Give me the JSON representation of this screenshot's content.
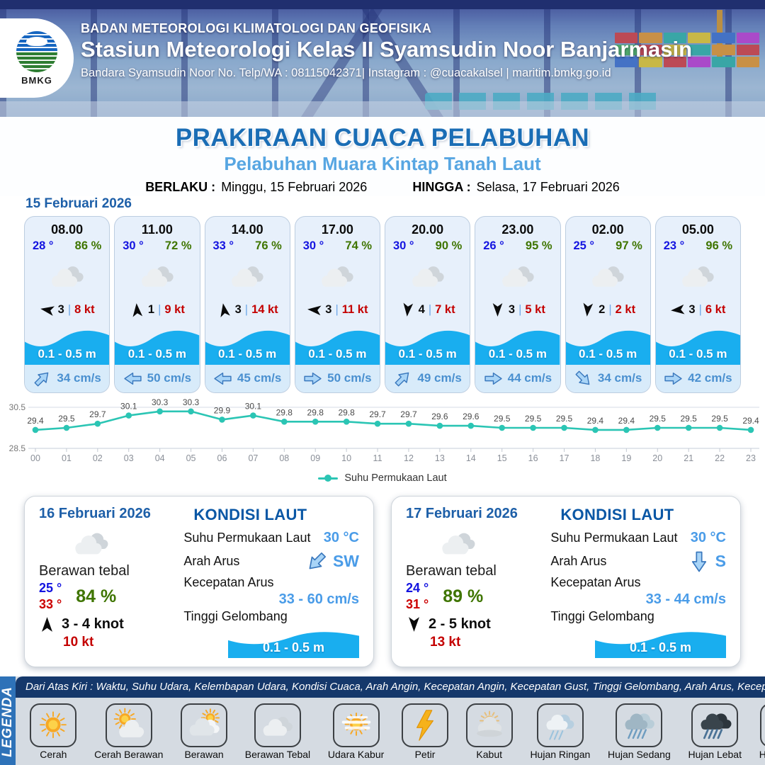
{
  "header": {
    "logo_text": "BMKG",
    "agency": "BADAN METEOROLOGI KLIMATOLOGI DAN GEOFISIKA",
    "station": "Stasiun Meteorologi Kelas II Syamsudin Noor Banjarmasin",
    "contact": "Bandara Syamsudin Noor No. Telp/WA : 08115042371| Instagram : @cuacakalsel | maritim.bmkg.go.id"
  },
  "title": {
    "main": "PRAKIRAAN CUACA PELABUHAN",
    "sub": "Pelabuhan Muara Kintap Tanah Laut"
  },
  "validity": {
    "berlaku_label": "BERLAKU :",
    "berlaku_value": "Minggu, 15 Februari 2026",
    "hingga_label": "HINGGA :",
    "hingga_value": "Selasa, 17 Februari 2026"
  },
  "forecast_day": {
    "date": "15 Februari 2026",
    "divider": "|",
    "slots": [
      {
        "time": "08.00",
        "temp": "28 °",
        "humidity": "86 %",
        "weather": "berawan-tebal",
        "wind_speed": "3",
        "wind_deg": 280,
        "gust": "8 kt",
        "wave": "0.1 - 0.5 m",
        "current_deg": 45,
        "current": "34 cm/s"
      },
      {
        "time": "11.00",
        "temp": "30 °",
        "humidity": "72 %",
        "weather": "berawan-tebal",
        "wind_speed": "1",
        "wind_deg": 355,
        "gust": "9 kt",
        "wave": "0.1 - 0.5 m",
        "current_deg": 270,
        "current": "50 cm/s"
      },
      {
        "time": "14.00",
        "temp": "33 °",
        "humidity": "76 %",
        "weather": "berawan-tebal",
        "wind_speed": "3",
        "wind_deg": 350,
        "gust": "14 kt",
        "wave": "0.1 - 0.5 m",
        "current_deg": 270,
        "current": "45 cm/s"
      },
      {
        "time": "17.00",
        "temp": "30 °",
        "humidity": "74 %",
        "weather": "berawan-tebal",
        "wind_speed": "3",
        "wind_deg": 275,
        "gust": "11 kt",
        "wave": "0.1 - 0.5 m",
        "current_deg": 90,
        "current": "50 cm/s"
      },
      {
        "time": "20.00",
        "temp": "30 °",
        "humidity": "90 %",
        "weather": "berawan-tebal",
        "wind_speed": "4",
        "wind_deg": 185,
        "gust": "7 kt",
        "wave": "0.1 - 0.5 m",
        "current_deg": 45,
        "current": "49 cm/s"
      },
      {
        "time": "23.00",
        "temp": "26 °",
        "humidity": "95 %",
        "weather": "berawan-tebal",
        "wind_speed": "3",
        "wind_deg": 180,
        "gust": "5 kt",
        "wave": "0.1 - 0.5 m",
        "current_deg": 90,
        "current": "44 cm/s"
      },
      {
        "time": "02.00",
        "temp": "25 °",
        "humidity": "97 %",
        "weather": "berawan-tebal",
        "wind_speed": "2",
        "wind_deg": 185,
        "gust": "2 kt",
        "wave": "0.1 - 0.5 m",
        "current_deg": 135,
        "current": "34 cm/s"
      },
      {
        "time": "05.00",
        "temp": "23 °",
        "humidity": "96 %",
        "weather": "berawan-tebal",
        "wind_speed": "3",
        "wind_deg": 265,
        "gust": "6 kt",
        "wave": "0.1 - 0.5 m",
        "current_deg": 90,
        "current": "42 cm/s"
      }
    ]
  },
  "chart_data": {
    "type": "line",
    "x": [
      "00",
      "01",
      "02",
      "03",
      "04",
      "05",
      "06",
      "07",
      "08",
      "09",
      "10",
      "11",
      "12",
      "13",
      "14",
      "15",
      "16",
      "17",
      "18",
      "19",
      "20",
      "21",
      "22",
      "23"
    ],
    "values": [
      29.4,
      29.5,
      29.7,
      30.1,
      30.3,
      30.3,
      29.9,
      30.1,
      29.8,
      29.8,
      29.8,
      29.7,
      29.7,
      29.6,
      29.6,
      29.5,
      29.5,
      29.5,
      29.4,
      29.4,
      29.5,
      29.5,
      29.5,
      29.4
    ],
    "series_name": "Suhu Permukaan Laut",
    "legend": "Suhu Permukaan Laut",
    "legend_position": "bottom",
    "ylim": [
      28.5,
      30.5
    ],
    "yticks": [
      "30.5",
      "28.5"
    ],
    "grid": true,
    "line_color": "#2bc5b4",
    "title": "",
    "xlabel": "",
    "ylabel": ""
  },
  "day_details": [
    {
      "date": "16 Februari 2026",
      "condition": "Berawan tebal",
      "temp_min": "25 °",
      "temp_max": "33 °",
      "humidity": "84 %",
      "wind_deg": 0,
      "wind_range": "3 - 4 knot",
      "gust": "10 kt",
      "sea": {
        "heading": "KONDISI LAUT",
        "sst_label": "Suhu Permukaan Laut",
        "sst": "30 °C",
        "current_dir_label": "Arah Arus",
        "current_dir": "SW",
        "current_dir_deg": 225,
        "current_speed_label": "Kecepatan Arus",
        "current_speed": "33 - 60 cm/s",
        "wave_label": "Tinggi Gelombang",
        "wave": "0.1 - 0.5 m"
      }
    },
    {
      "date": "17 Februari 2026",
      "condition": "Berawan tebal",
      "temp_min": "24 °",
      "temp_max": "31 °",
      "humidity": "89 %",
      "wind_deg": 180,
      "wind_range": "2 - 5 knot",
      "gust": "13 kt",
      "sea": {
        "heading": "KONDISI LAUT",
        "sst_label": "Suhu Permukaan Laut",
        "sst": "30 °C",
        "current_dir_label": "Arah Arus",
        "current_dir": "S",
        "current_dir_deg": 180,
        "current_speed_label": "Kecepatan Arus",
        "current_speed": "33 - 44 cm/s",
        "wave_label": "Tinggi Gelombang",
        "wave": "0.1 - 0.5 m"
      }
    }
  ],
  "legend": {
    "sidebar": "LEGENDA",
    "note": "Dari Atas Kiri : Waktu, Suhu Udara, Kelembapan Udara, Kondisi Cuaca, Arah Angin, Kecepatan Angin, Kecepatan Gust, Tinggi Gelombang, Arah Arus, Kecepatan Arus",
    "items": [
      {
        "label": "Cerah",
        "icon": "cerah"
      },
      {
        "label": "Cerah Berawan",
        "icon": "cerah-berawan"
      },
      {
        "label": "Berawan",
        "icon": "berawan"
      },
      {
        "label": "Berawan Tebal",
        "icon": "berawan-tebal"
      },
      {
        "label": "Udara Kabur",
        "icon": "udara-kabur"
      },
      {
        "label": "Petir",
        "icon": "petir"
      },
      {
        "label": "Kabut",
        "icon": "kabut"
      },
      {
        "label": "Hujan Ringan",
        "icon": "hujan-ringan"
      },
      {
        "label": "Hujan Sedang",
        "icon": "hujan-sedang"
      },
      {
        "label": "Hujan Lebat",
        "icon": "hujan-lebat"
      },
      {
        "label": "Hujan Petir",
        "icon": "hujan-petir"
      }
    ]
  }
}
